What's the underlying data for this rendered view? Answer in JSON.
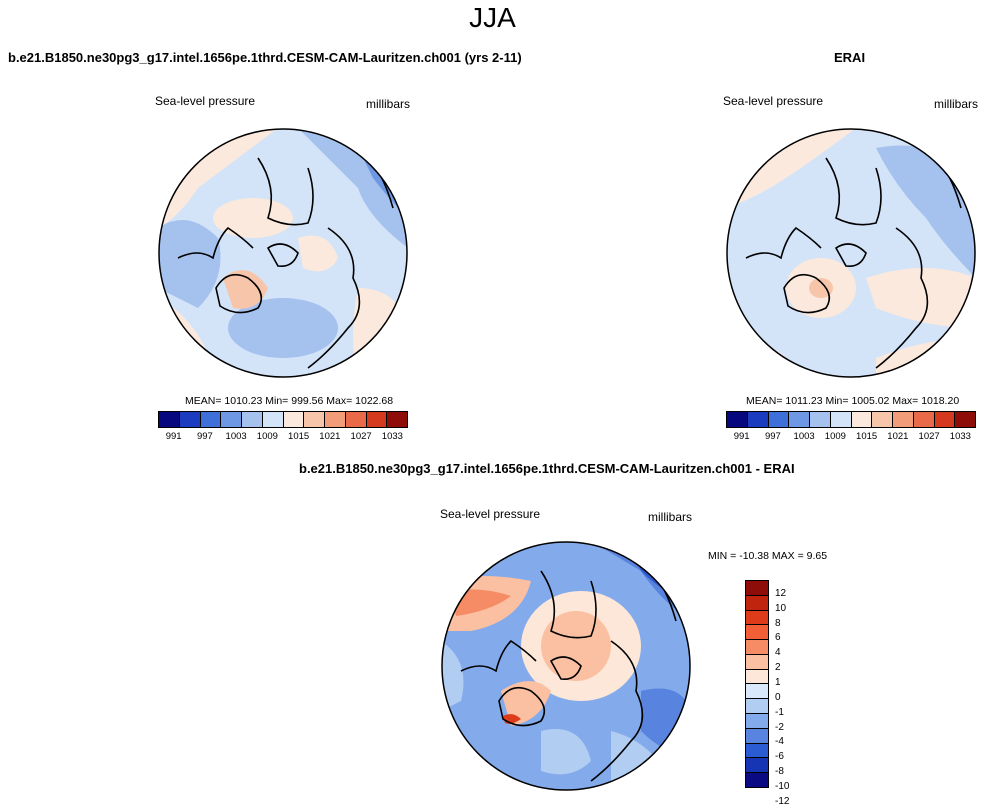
{
  "figure": {
    "title": "JJA",
    "left_title": "b.e21.B1850.ne30pg3_g17.intel.1656pe.1thrd.CESM-CAM-Lauritzen.ch001 (yrs 2-11)",
    "right_title": "ERAI",
    "diff_title": "b.e21.B1850.ne30pg3_g17.intel.1656pe.1thrd.CESM-CAM-Lauritzen.ch001 - ERAI",
    "variable_label": "Sea-level pressure",
    "units_label": "millibars"
  },
  "colors": {
    "abs_bar": [
      "#08087e",
      "#1c3cc0",
      "#3f70da",
      "#6f98e4",
      "#a5c1ee",
      "#d3e3f8",
      "#fce9dd",
      "#f7c5aa",
      "#f29c79",
      "#e96a48",
      "#d53a1f",
      "#8f0d08"
    ],
    "diff_bar": [
      "#8f0d08",
      "#c0240f",
      "#de3b1a",
      "#f25e35",
      "#f68c66",
      "#fbc0a2",
      "#fde7d8",
      "#d9e8fa",
      "#b1cdf2",
      "#83aaea",
      "#5883df",
      "#2c5cd3",
      "#1535b5",
      "#0a0a82"
    ]
  },
  "chart_data": [
    {
      "type": "heatmap",
      "projection": "north polar stereographic",
      "title": "b.e21.B1850.ne30pg3_g17.intel.1656pe.1thrd.CESM-CAM-Lauritzen.ch001 (yrs 2-11)",
      "variable": "Sea-level pressure",
      "units": "millibars",
      "stats_text": "MEAN= 1010.23  Min= 999.56  Max= 1022.68",
      "mean": 1010.23,
      "min": 999.56,
      "max": 1022.68,
      "colorbar_ticks": [
        "991",
        "997",
        "1003",
        "1009",
        "1015",
        "1021",
        "1027",
        "1033"
      ]
    },
    {
      "type": "heatmap",
      "projection": "north polar stereographic",
      "title": "ERAI",
      "variable": "Sea-level pressure",
      "units": "millibars",
      "stats_text": "MEAN= 1011.23  Min= 1005.02  Max= 1018.20",
      "mean": 1011.23,
      "min": 1005.02,
      "max": 1018.2,
      "colorbar_ticks": [
        "991",
        "997",
        "1003",
        "1009",
        "1015",
        "1021",
        "1027",
        "1033"
      ]
    },
    {
      "type": "heatmap",
      "projection": "north polar stereographic",
      "title": "b.e21.B1850.ne30pg3_g17.intel.1656pe.1thrd.CESM-CAM-Lauritzen.ch001 - ERAI",
      "variable": "Sea-level pressure",
      "units": "millibars",
      "stats_text": "MIN = -10.38 MAX =   9.65",
      "min": -10.38,
      "max": 9.65,
      "colorbar_ticks": [
        "12",
        "10",
        "8",
        "6",
        "4",
        "2",
        "1",
        "0",
        "-1",
        "-2",
        "-4",
        "-6",
        "-8",
        "-10",
        "-12"
      ]
    }
  ]
}
